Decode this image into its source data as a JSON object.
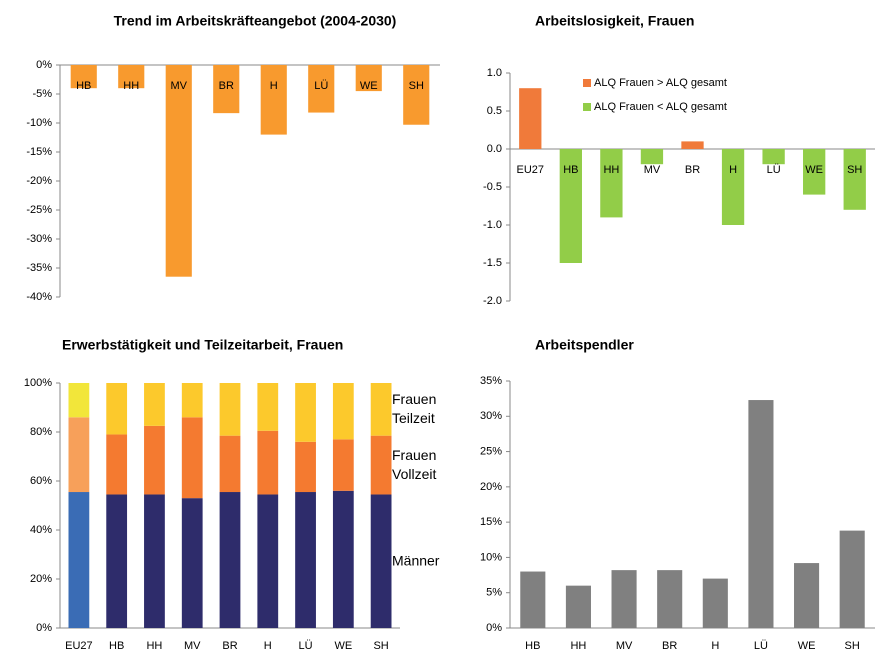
{
  "chart_data": [
    {
      "type": "bar",
      "title": "Trend im Arbeitskräfteangebot (2004-2030)",
      "categories": [
        "HB",
        "HH",
        "MV",
        "BR",
        "H",
        "LÜ",
        "WE",
        "SH"
      ],
      "values": [
        -4,
        -4,
        -36.5,
        -8.3,
        -12,
        -8.2,
        -4.5,
        -10.3
      ],
      "color": "#f89a2e",
      "ylim": [
        -40,
        0
      ],
      "yticks": [
        {
          "value": 0,
          "label": "0%"
        },
        {
          "value": -5,
          "label": "-5%"
        },
        {
          "value": -10,
          "label": "-10%"
        },
        {
          "value": -15,
          "label": "-15%"
        },
        {
          "value": -20,
          "label": "-20%"
        },
        {
          "value": -25,
          "label": "-25%"
        },
        {
          "value": -30,
          "label": "-30%"
        },
        {
          "value": -35,
          "label": "-35%"
        },
        {
          "value": -40,
          "label": "-40%"
        }
      ]
    },
    {
      "type": "bar",
      "title": "Arbeitslosigkeit, Frauen",
      "categories": [
        "EU27",
        "HB",
        "HH",
        "MV",
        "BR",
        "H",
        "LÜ",
        "WE",
        "SH"
      ],
      "series": [
        {
          "name": "ALQ Frauen > ALQ gesamt",
          "color": "#f07a3a",
          "values": [
            0.8,
            null,
            null,
            null,
            0.1,
            null,
            null,
            null,
            null
          ]
        },
        {
          "name": "ALQ Frauen < ALQ gesamt",
          "color": "#92cd48",
          "values": [
            null,
            -1.5,
            -0.9,
            -0.2,
            null,
            -1.0,
            -0.2,
            -0.6,
            -0.8
          ]
        }
      ],
      "ylim": [
        -2,
        1
      ],
      "yticks": [
        {
          "value": 1,
          "label": "1.0"
        },
        0.5,
        {
          "value": 0,
          "label": "0.0"
        },
        -0.5,
        {
          "value": -1,
          "label": "-1.0"
        },
        -1.5,
        {
          "value": -2,
          "label": "-2.0"
        }
      ]
    },
    {
      "type": "stacked_bar",
      "title": "Erwerbstätigkeit und Teilzeitarbeit, Frauen",
      "categories": [
        "EU27",
        "HB",
        "HH",
        "MV",
        "BR",
        "H",
        "LÜ",
        "WE",
        "SH"
      ],
      "series": [
        {
          "name": "Männer",
          "colors": [
            "#3a6cb5",
            "#2e2c6b",
            "#2e2c6b",
            "#2e2c6b",
            "#2e2c6b",
            "#2e2c6b",
            "#2e2c6b",
            "#2e2c6b",
            "#2e2c6b"
          ],
          "values": [
            55.5,
            54.5,
            54.5,
            53,
            55.5,
            54.5,
            55.5,
            56,
            54.5
          ]
        },
        {
          "name": "Frauen Vollzeit",
          "colors": [
            "#f7a05a",
            "#f47a30",
            "#f47a30",
            "#f47a30",
            "#f47a30",
            "#f47a30",
            "#f47a30",
            "#f47a30",
            "#f47a30"
          ],
          "values": [
            30.5,
            24.5,
            28,
            33,
            23,
            26,
            20.5,
            21,
            24
          ]
        },
        {
          "name": "Frauen Teilzeit",
          "colors": [
            "#f2e63a",
            "#fcc92c",
            "#fcc92c",
            "#fcc92c",
            "#fcc92c",
            "#fcc92c",
            "#fcc92c",
            "#fcc92c",
            "#fcc92c"
          ],
          "values": [
            14,
            21,
            17.5,
            14,
            21.5,
            19.5,
            24,
            23,
            21.5
          ]
        }
      ],
      "ylim": [
        0,
        100
      ],
      "yticks": [
        {
          "value": 0,
          "label": "0%"
        },
        {
          "value": 20,
          "label": "20%"
        },
        {
          "value": 40,
          "label": "40%"
        },
        {
          "value": 60,
          "label": "60%"
        },
        {
          "value": 80,
          "label": "80%"
        },
        {
          "value": 100,
          "label": "100%"
        }
      ]
    },
    {
      "type": "bar",
      "title": "Arbeitspendler",
      "categories": [
        "HB",
        "HH",
        "MV",
        "BR",
        "H",
        "LÜ",
        "WE",
        "SH"
      ],
      "values": [
        8,
        6,
        8.2,
        8.2,
        7,
        32.3,
        9.2,
        13.8
      ],
      "color": "#808080",
      "ylim": [
        0,
        35
      ],
      "yticks": [
        {
          "value": 0,
          "label": "0%"
        },
        {
          "value": 5,
          "label": "5%"
        },
        {
          "value": 10,
          "label": "10%"
        },
        {
          "value": 15,
          "label": "15%"
        },
        {
          "value": 20,
          "label": "20%"
        },
        {
          "value": 25,
          "label": "25%"
        },
        {
          "value": 30,
          "label": "30%"
        },
        {
          "value": 35,
          "label": "35%"
        }
      ]
    }
  ]
}
